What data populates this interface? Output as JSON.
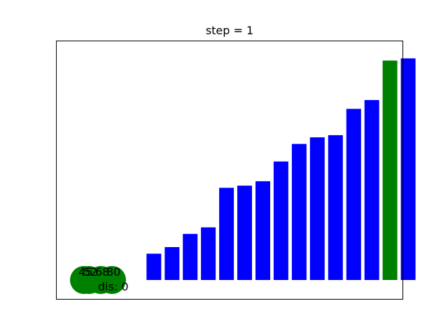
{
  "chart_data": {
    "type": "bar",
    "title": "step = 1",
    "xlabel": "",
    "ylabel": "",
    "grid": false,
    "axis_ticks_visible": false,
    "ylim": [
      0,
      100
    ],
    "values": [
      0,
      0,
      0,
      0,
      12,
      15,
      21,
      24,
      42,
      43,
      45,
      54,
      62,
      65,
      66,
      78,
      82,
      100,
      101
    ],
    "bar_colors": [
      "#0000ff",
      "#0000ff",
      "#0000ff",
      "#0000ff",
      "#0000ff",
      "#0000ff",
      "#0000ff",
      "#0000ff",
      "#0000ff",
      "#0000ff",
      "#0000ff",
      "#0000ff",
      "#0000ff",
      "#0000ff",
      "#0000ff",
      "#0000ff",
      "#0000ff",
      "#008000",
      "#0000ff"
    ],
    "markers": [
      {
        "x": 1,
        "y": 0,
        "label": "45",
        "color": "#008000"
      },
      {
        "x": 2,
        "y": 0,
        "label": "52",
        "color": "#008000"
      },
      {
        "x": 3,
        "y": 0,
        "label": "68",
        "color": "#008000"
      },
      {
        "x": 4,
        "y": 0,
        "label": "80",
        "color": "#008000"
      }
    ],
    "annotation": "dis: 0"
  }
}
